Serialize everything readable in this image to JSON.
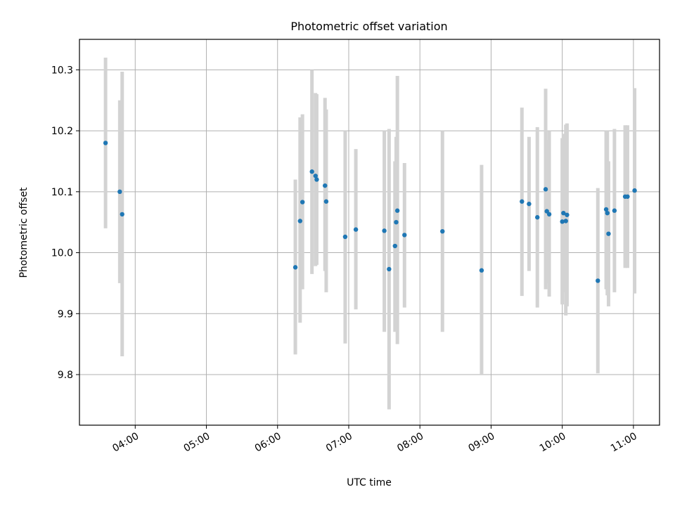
{
  "chart_data": {
    "type": "scatter",
    "title": "Photometric offset variation",
    "xlabel": "UTC time",
    "ylabel": "Photometric offset",
    "x_format": "HH:MM",
    "xlim": [
      "03:13",
      "11:22"
    ],
    "ylim": [
      9.717,
      10.35
    ],
    "x_ticks": [
      "04:00",
      "05:00",
      "06:00",
      "07:00",
      "08:00",
      "09:00",
      "10:00",
      "11:00"
    ],
    "y_ticks": [
      "9.8",
      "9.9",
      "10.0",
      "10.1",
      "10.2",
      "10.3"
    ],
    "grid": true,
    "errorbar_color": "#d3d3d3",
    "marker_color": "#1f77b4",
    "points": [
      {
        "x": "03:35",
        "y": 10.18,
        "yerr": [
          10.04,
          10.32
        ]
      },
      {
        "x": "03:47",
        "y": 10.1,
        "yerr": [
          9.95,
          10.25
        ]
      },
      {
        "x": "03:49",
        "y": 10.063,
        "yerr": [
          9.83,
          10.297
        ]
      },
      {
        "x": "06:15",
        "y": 9.976,
        "yerr": [
          9.833,
          10.12
        ]
      },
      {
        "x": "06:19",
        "y": 10.052,
        "yerr": [
          9.885,
          10.222
        ]
      },
      {
        "x": "06:21",
        "y": 10.083,
        "yerr": [
          9.94,
          10.227
        ]
      },
      {
        "x": "06:29",
        "y": 10.133,
        "yerr": [
          9.965,
          10.3
        ]
      },
      {
        "x": "06:32",
        "y": 10.126,
        "yerr": [
          9.978,
          10.262
        ]
      },
      {
        "x": "06:33",
        "y": 10.12,
        "yerr": [
          9.98,
          10.26
        ]
      },
      {
        "x": "06:40",
        "y": 10.11,
        "yerr": [
          9.97,
          10.254
        ]
      },
      {
        "x": "06:41",
        "y": 10.084,
        "yerr": [
          9.935,
          10.235
        ]
      },
      {
        "x": "06:57",
        "y": 10.026,
        "yerr": [
          9.851,
          10.2
        ]
      },
      {
        "x": "07:06",
        "y": 10.038,
        "yerr": [
          9.907,
          10.17
        ]
      },
      {
        "x": "07:30",
        "y": 10.036,
        "yerr": [
          9.87,
          10.2
        ]
      },
      {
        "x": "07:34",
        "y": 9.973,
        "yerr": [
          9.743,
          10.203
        ]
      },
      {
        "x": "07:39",
        "y": 10.011,
        "yerr": [
          9.87,
          10.15
        ]
      },
      {
        "x": "07:40",
        "y": 10.05,
        "yerr": [
          9.93,
          10.19
        ]
      },
      {
        "x": "07:41",
        "y": 10.069,
        "yerr": [
          9.85,
          10.29
        ]
      },
      {
        "x": "07:47",
        "y": 10.029,
        "yerr": [
          9.91,
          10.147
        ]
      },
      {
        "x": "08:19",
        "y": 10.035,
        "yerr": [
          9.87,
          10.2
        ]
      },
      {
        "x": "08:52",
        "y": 9.971,
        "yerr": [
          9.8,
          10.144
        ]
      },
      {
        "x": "09:26",
        "y": 10.084,
        "yerr": [
          9.929,
          10.238
        ]
      },
      {
        "x": "09:32",
        "y": 10.08,
        "yerr": [
          9.97,
          10.19
        ]
      },
      {
        "x": "09:39",
        "y": 10.058,
        "yerr": [
          9.91,
          10.206
        ]
      },
      {
        "x": "09:46",
        "y": 10.104,
        "yerr": [
          9.94,
          10.269
        ]
      },
      {
        "x": "09:47",
        "y": 10.068,
        "yerr": [
          9.95,
          10.185
        ]
      },
      {
        "x": "09:49",
        "y": 10.063,
        "yerr": [
          9.928,
          10.2
        ]
      },
      {
        "x": "10:00",
        "y": 10.051,
        "yerr": [
          9.915,
          10.188
        ]
      },
      {
        "x": "10:01",
        "y": 10.065,
        "yerr": [
          9.935,
          10.195
        ]
      },
      {
        "x": "10:03",
        "y": 10.052,
        "yerr": [
          9.897,
          10.21
        ]
      },
      {
        "x": "10:04",
        "y": 10.062,
        "yerr": [
          9.912,
          10.212
        ]
      },
      {
        "x": "10:30",
        "y": 9.954,
        "yerr": [
          9.802,
          10.106
        ]
      },
      {
        "x": "10:37",
        "y": 10.071,
        "yerr": [
          9.94,
          10.2
        ]
      },
      {
        "x": "10:38",
        "y": 10.065,
        "yerr": [
          9.93,
          10.2
        ]
      },
      {
        "x": "10:39",
        "y": 10.031,
        "yerr": [
          9.912,
          10.15
        ]
      },
      {
        "x": "10:44",
        "y": 10.069,
        "yerr": [
          9.935,
          10.203
        ]
      },
      {
        "x": "10:53",
        "y": 10.092,
        "yerr": [
          9.975,
          10.209
        ]
      },
      {
        "x": "10:55",
        "y": 10.092,
        "yerr": [
          9.975,
          10.209
        ]
      },
      {
        "x": "11:01",
        "y": 10.102,
        "yerr": [
          9.933,
          10.27
        ]
      }
    ]
  }
}
